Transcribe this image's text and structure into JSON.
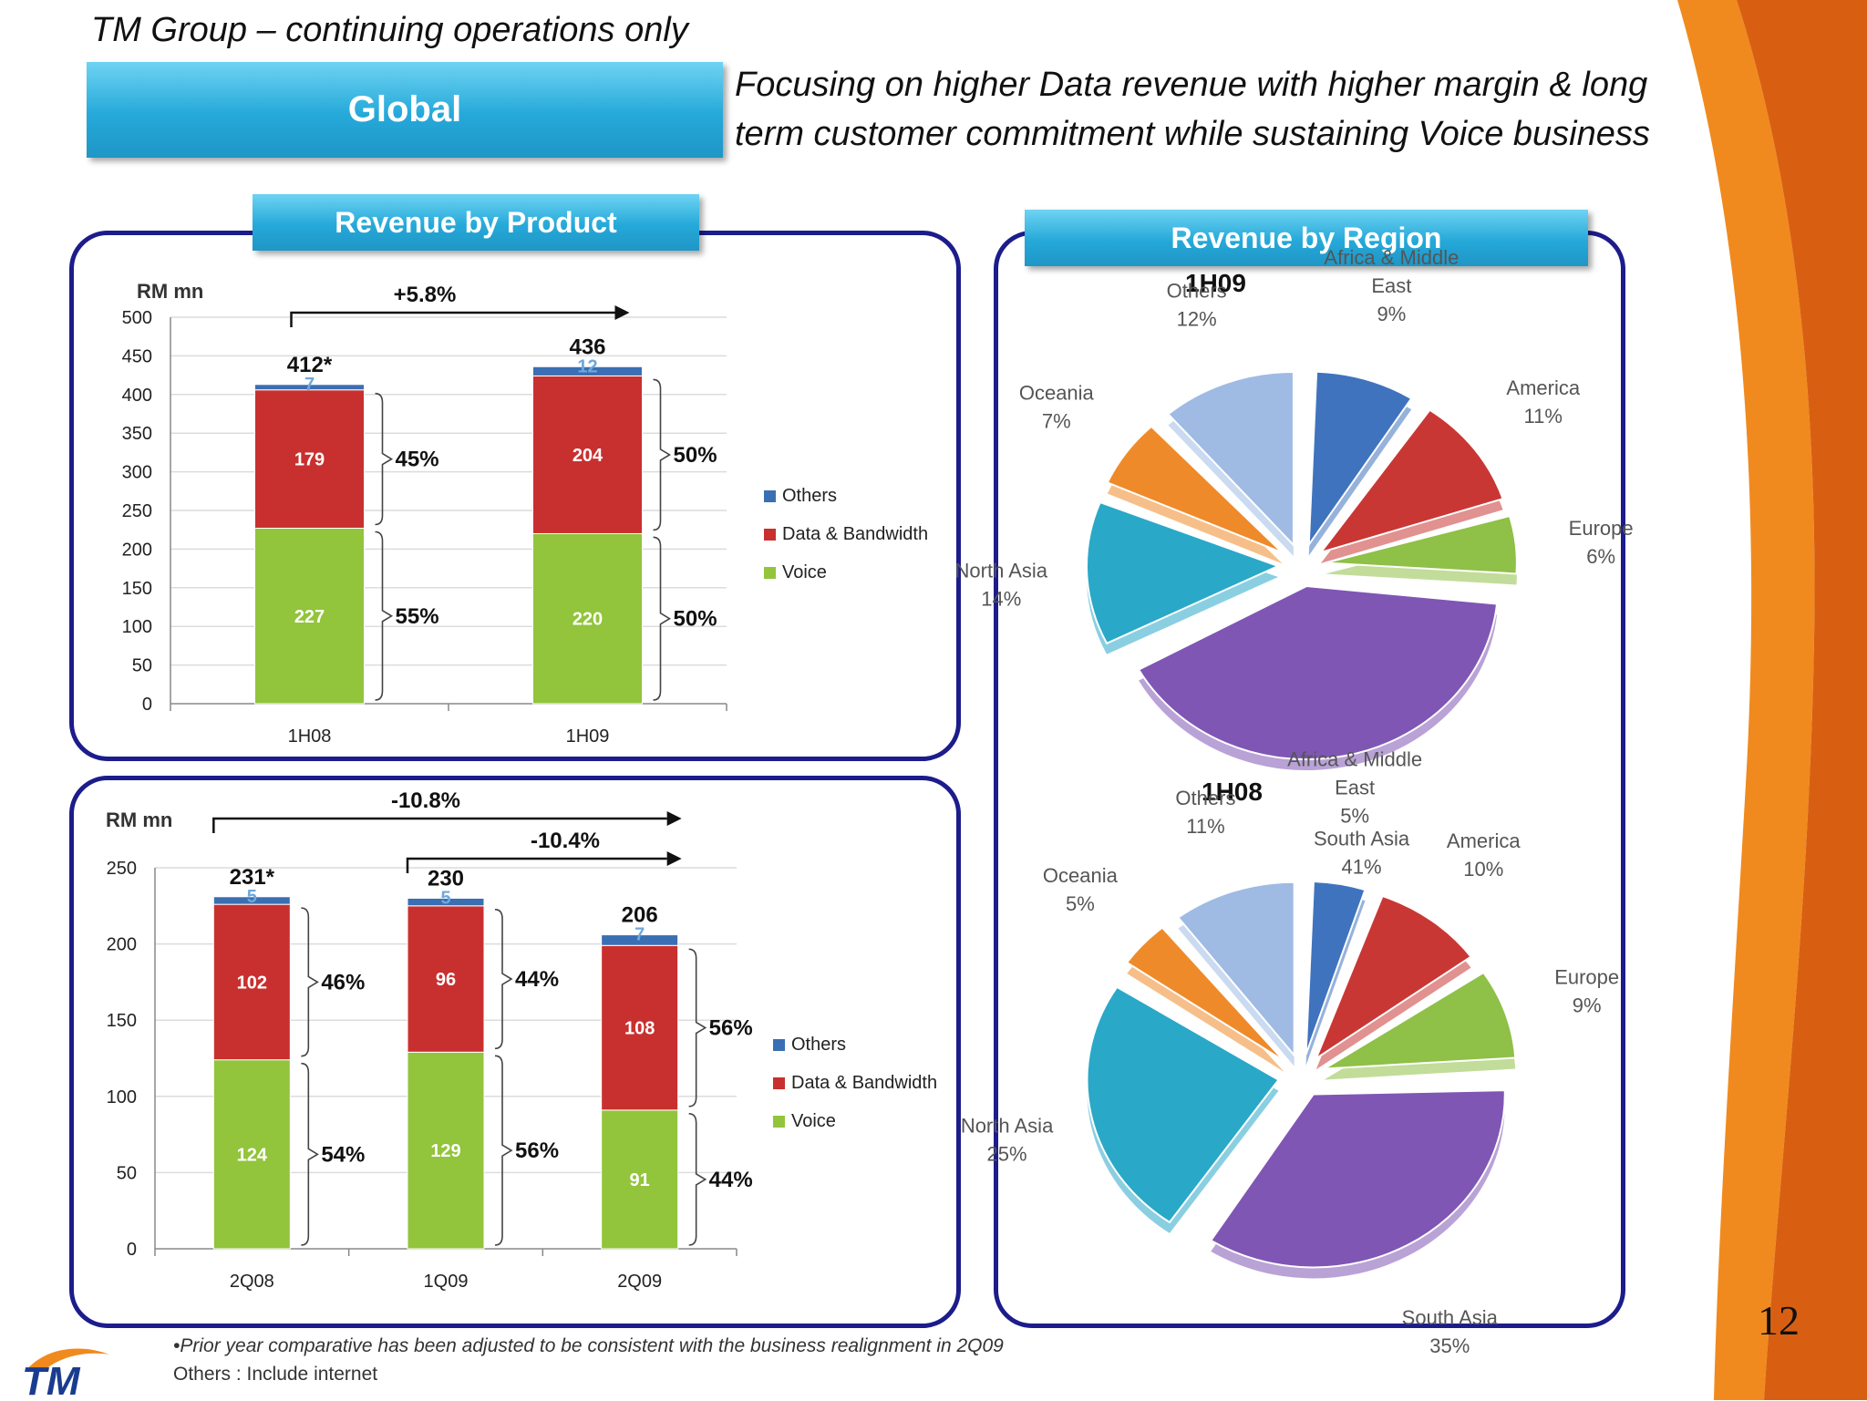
{
  "header": {
    "subtitle": "TM Group – continuing operations only",
    "banner": "Global",
    "tagline_1": "Focusing on higher Data revenue with higher margin & long",
    "tagline_2": "term customer commitment while sustaining Voice business"
  },
  "colors": {
    "voice": "#92c43c",
    "data": "#c8302f",
    "others": "#3a6fb3",
    "panel_border": "#1c1c8c",
    "banner": "#25a9d9"
  },
  "product_panel": {
    "title": "Revenue by Product"
  },
  "region_panel": {
    "title": "Revenue by Region"
  },
  "footer": {
    "note": "•Prior year comparative has been adjusted to be consistent with the business realignment in 2Q09",
    "others_note": "Others : Include internet",
    "page_number": "12",
    "logo": "TM"
  },
  "chart_data": [
    {
      "type": "bar",
      "stacked": true,
      "ylabel": "RM mn",
      "ylim": [
        0,
        500
      ],
      "yticks": [
        0,
        50,
        100,
        150,
        200,
        250,
        300,
        350,
        400,
        450,
        500
      ],
      "categories": [
        "1H08",
        "1H09"
      ],
      "totals": [
        "412*",
        "436"
      ],
      "series": [
        {
          "name": "Voice",
          "values": [
            227,
            220
          ],
          "color": "#92c43c"
        },
        {
          "name": "Data & Bandwidth",
          "values": [
            179,
            204
          ],
          "color": "#c8302f"
        },
        {
          "name": "Others",
          "values": [
            7,
            12
          ],
          "color": "#3a6fb3"
        }
      ],
      "shares": {
        "data": [
          "45%",
          "50%"
        ],
        "voice": [
          "55%",
          "50%"
        ]
      },
      "growth": [
        {
          "label": "+5.8%",
          "from": 0,
          "to": 1
        }
      ],
      "legend": [
        "Others",
        "Data & Bandwidth",
        "Voice"
      ],
      "legend_position": "right"
    },
    {
      "type": "bar",
      "stacked": true,
      "ylabel": "RM mn",
      "ylim": [
        0,
        250
      ],
      "yticks": [
        0,
        50,
        100,
        150,
        200,
        250
      ],
      "categories": [
        "2Q08",
        "1Q09",
        "2Q09"
      ],
      "totals": [
        "231*",
        "230",
        "206"
      ],
      "series": [
        {
          "name": "Voice",
          "values": [
            124,
            129,
            91
          ],
          "color": "#92c43c"
        },
        {
          "name": "Data & Bandwidth",
          "values": [
            102,
            96,
            108
          ],
          "color": "#c8302f"
        },
        {
          "name": "Others",
          "values": [
            5,
            5,
            7
          ],
          "color": "#3a6fb3"
        }
      ],
      "shares": {
        "data": [
          "46%",
          "44%",
          "56%"
        ],
        "voice": [
          "54%",
          "56%",
          "44%"
        ]
      },
      "growth": [
        {
          "label": "-10.8%",
          "from": 0,
          "to": 2
        },
        {
          "label": "-10.4%",
          "from": 1,
          "to": 2
        }
      ],
      "legend": [
        "Others",
        "Data & Bandwidth",
        "Voice"
      ],
      "legend_position": "right"
    },
    {
      "type": "pie",
      "title": "1H09",
      "slices": [
        {
          "name": "Africa & Middle East",
          "value": 9,
          "label": "9%",
          "color": "#3f73be"
        },
        {
          "name": "America",
          "value": 11,
          "label": "11%",
          "color": "#c93735"
        },
        {
          "name": "Europe",
          "value": 6,
          "label": "6%",
          "color": "#8fc047"
        },
        {
          "name": "South Asia",
          "value": 41,
          "label": "41%",
          "color": "#7f56b4"
        },
        {
          "name": "North Asia",
          "value": 14,
          "label": "14%",
          "color": "#2aa8c8"
        },
        {
          "name": "Oceania",
          "value": 7,
          "label": "7%",
          "color": "#ef8a2a"
        },
        {
          "name": "Others",
          "value": 12,
          "label": "12%",
          "color": "#9fbbe3"
        }
      ]
    },
    {
      "type": "pie",
      "title": "1H08",
      "slices": [
        {
          "name": "Africa & Middle East",
          "value": 5,
          "label": "5%",
          "color": "#3f73be"
        },
        {
          "name": "America",
          "value": 10,
          "label": "10%",
          "color": "#c93735"
        },
        {
          "name": "Europe",
          "value": 9,
          "label": "9%",
          "color": "#8fc047"
        },
        {
          "name": "South Asia",
          "value": 35,
          "label": "35%",
          "color": "#7f56b4"
        },
        {
          "name": "North Asia",
          "value": 25,
          "label": "25%",
          "color": "#2aa8c8"
        },
        {
          "name": "Oceania",
          "value": 5,
          "label": "5%",
          "color": "#ef8a2a"
        },
        {
          "name": "Others",
          "value": 11,
          "label": "11%",
          "color": "#9fbbe3"
        }
      ]
    }
  ]
}
